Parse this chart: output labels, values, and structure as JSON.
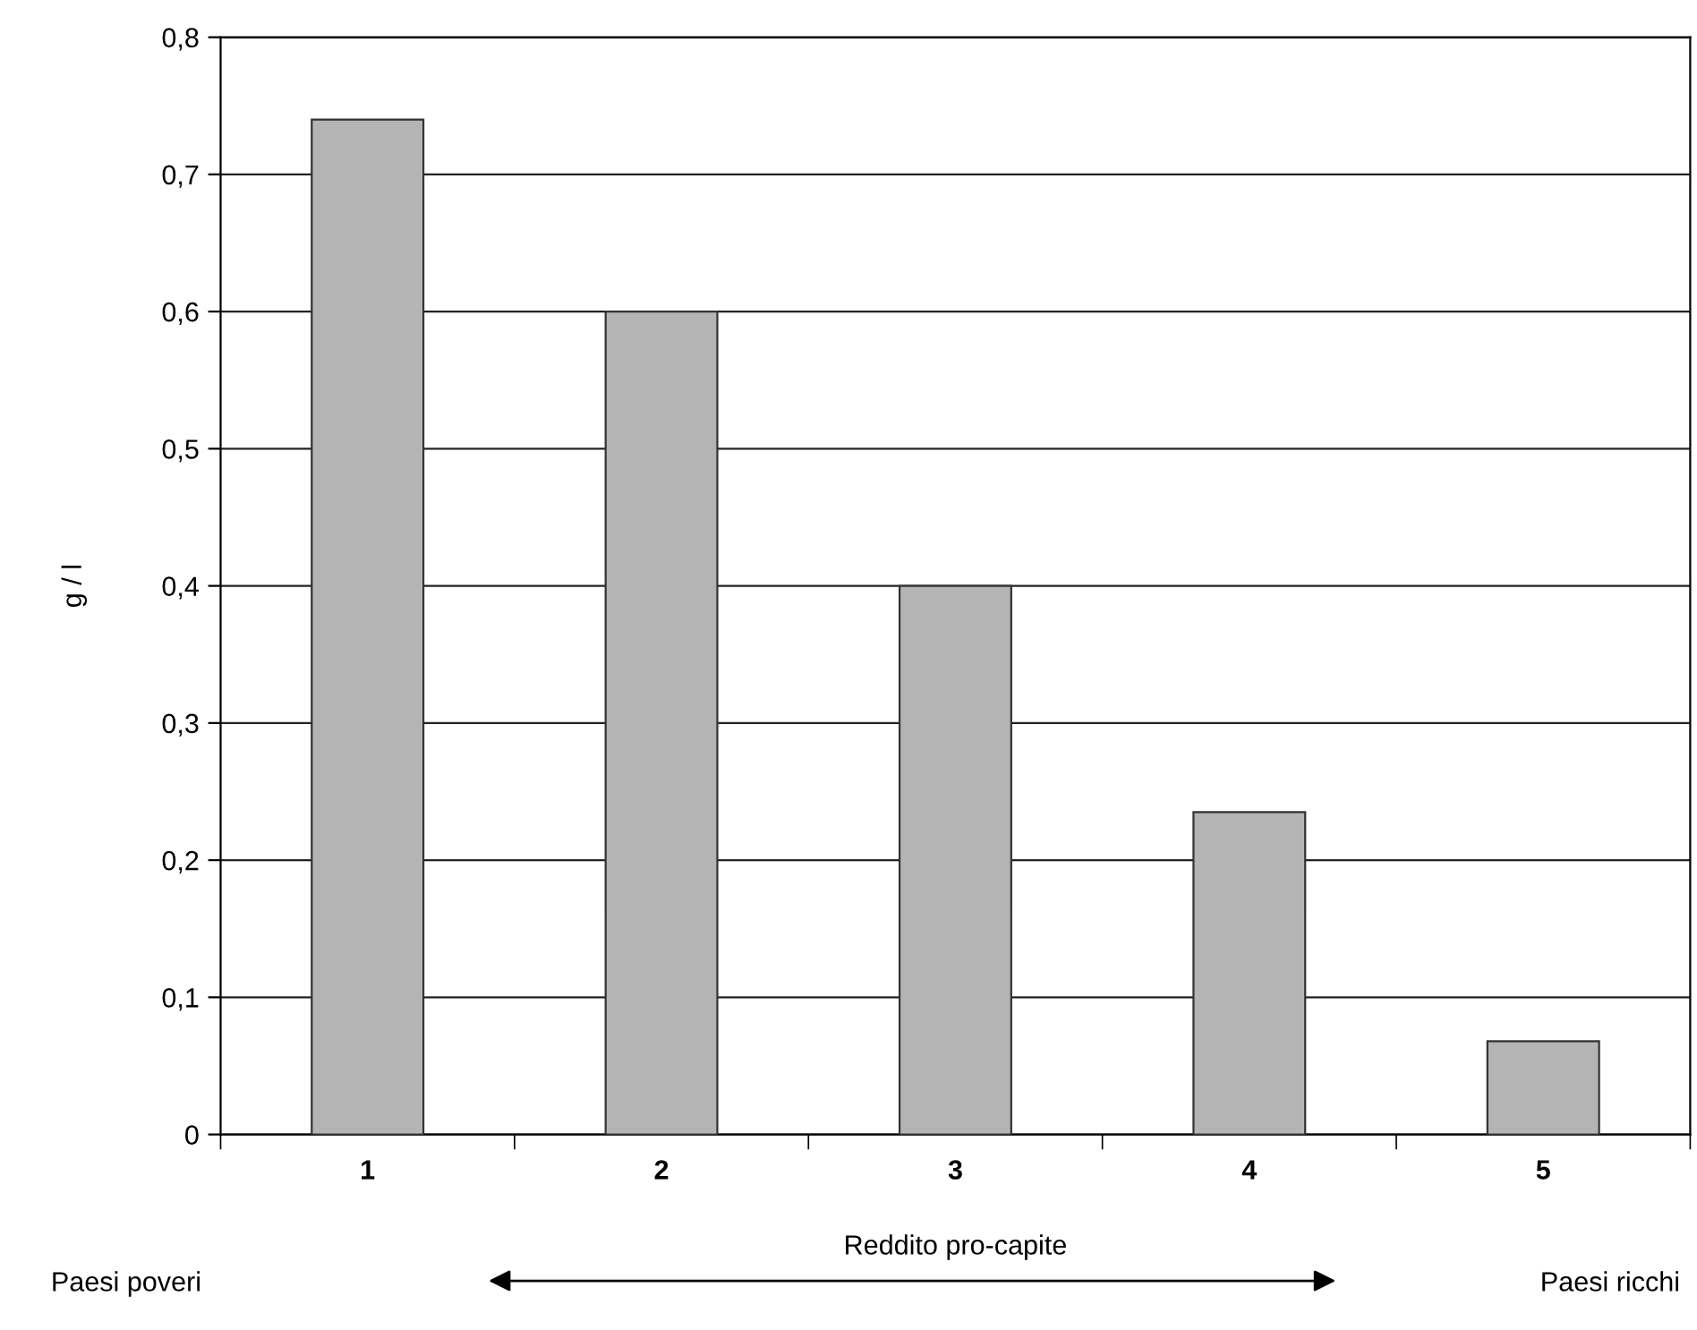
{
  "chart_data": {
    "type": "bar",
    "categories": [
      "1",
      "2",
      "3",
      "4",
      "5"
    ],
    "values": [
      0.74,
      0.6,
      0.4,
      0.235,
      0.068
    ],
    "color": "#b4b4b4",
    "ylabel": "g / l",
    "xlabel": "Reddito pro-capite",
    "annotations": [
      "Paesi poveri",
      "Paesi ricchi"
    ],
    "ylim": [
      0,
      0.8
    ],
    "yticks": [
      {
        "value": 0,
        "label": "0"
      },
      {
        "value": 0.1,
        "label": "0,1"
      },
      {
        "value": 0.2,
        "label": "0,2"
      },
      {
        "value": 0.3,
        "label": "0,3"
      },
      {
        "value": 0.4,
        "label": "0,4"
      },
      {
        "value": 0.5,
        "label": "0,5"
      },
      {
        "value": 0.6,
        "label": "0,6"
      },
      {
        "value": 0.7,
        "label": "0,7"
      },
      {
        "value": 0.8,
        "label": "0,8"
      }
    ],
    "grid": "y"
  }
}
